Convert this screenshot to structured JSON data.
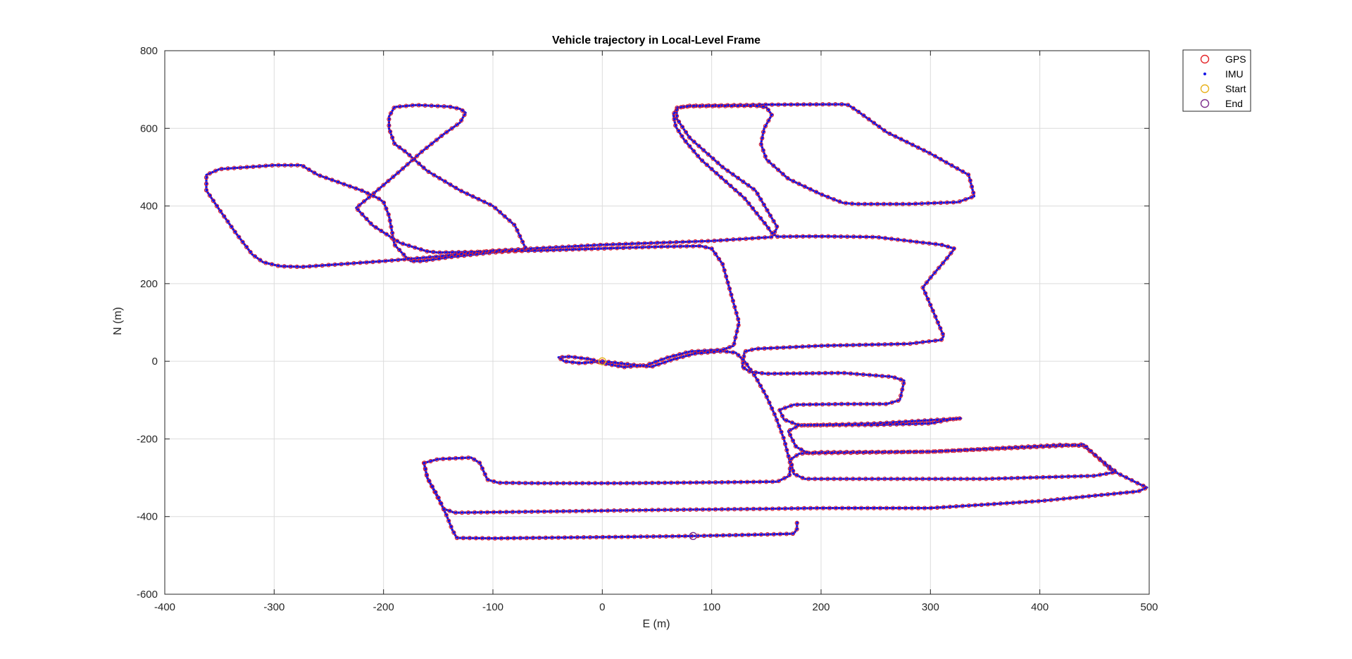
{
  "chart_data": {
    "type": "line",
    "title": "Vehicle trajectory in Local-Level Frame",
    "xlabel": "E (m)",
    "ylabel": "N (m)",
    "xlim": [
      -400,
      500
    ],
    "ylim": [
      -600,
      800
    ],
    "xticks": [
      -400,
      -300,
      -200,
      -100,
      0,
      100,
      200,
      300,
      400,
      500
    ],
    "yticks": [
      -600,
      -400,
      -200,
      0,
      200,
      400,
      600,
      800
    ],
    "xtick_labels": [
      "-400",
      "-300",
      "-200",
      "-100",
      "0",
      "100",
      "200",
      "300",
      "400",
      "500"
    ],
    "ytick_labels": [
      "-600",
      "-400",
      "-200",
      "0",
      "200",
      "400",
      "600",
      "800"
    ],
    "grid": true,
    "legend_position": "outside-top-right",
    "series": [
      {
        "name": "GPS",
        "style": "red-circle-markers",
        "color": "#e4262a"
      },
      {
        "name": "IMU",
        "style": "blue-dot-markers",
        "color": "#1515e6"
      },
      {
        "name": "Start",
        "style": "circle-marker",
        "color": "#e8b21c",
        "x": [
          0
        ],
        "y": [
          0
        ]
      },
      {
        "name": "End",
        "style": "circle-marker",
        "color": "#7e2f8e",
        "x": [
          83
        ],
        "y": [
          -450
        ]
      }
    ],
    "trajectory": [
      [
        0,
        0
      ],
      [
        25,
        -8
      ],
      [
        45,
        -14
      ],
      [
        65,
        5
      ],
      [
        85,
        20
      ],
      [
        110,
        26
      ],
      [
        122,
        22
      ],
      [
        130,
        0
      ],
      [
        140,
        -40
      ],
      [
        150,
        -90
      ],
      [
        158,
        -140
      ],
      [
        166,
        -200
      ],
      [
        172,
        -265
      ],
      [
        171,
        -295
      ],
      [
        160,
        -310
      ],
      [
        100,
        -312
      ],
      [
        20,
        -314
      ],
      [
        -60,
        -314
      ],
      [
        -95,
        -313
      ],
      [
        -105,
        -305
      ],
      [
        -112,
        -262
      ],
      [
        -120,
        -248
      ],
      [
        -150,
        -252
      ],
      [
        -163,
        -262
      ],
      [
        -160,
        -300
      ],
      [
        -145,
        -380
      ],
      [
        -135,
        -390
      ],
      [
        -50,
        -387
      ],
      [
        50,
        -383
      ],
      [
        150,
        -380
      ],
      [
        200,
        -378
      ],
      [
        300,
        -378
      ],
      [
        400,
        -360
      ],
      [
        490,
        -335
      ],
      [
        498,
        -325
      ],
      [
        490,
        -315
      ],
      [
        465,
        -280
      ],
      [
        440,
        -214
      ],
      [
        420,
        -218
      ],
      [
        300,
        -233
      ],
      [
        200,
        -234
      ],
      [
        180,
        -238
      ],
      [
        172,
        -253
      ],
      [
        175,
        -290
      ],
      [
        185,
        -303
      ],
      [
        250,
        -303
      ],
      [
        350,
        -303
      ],
      [
        450,
        -295
      ],
      [
        470,
        -285
      ],
      [
        465,
        -275
      ],
      [
        440,
        -218
      ],
      [
        420,
        -215
      ],
      [
        300,
        -233
      ],
      [
        188,
        -237
      ],
      [
        177,
        -220
      ],
      [
        170,
        -180
      ],
      [
        180,
        -165
      ],
      [
        250,
        -164
      ],
      [
        300,
        -160
      ],
      [
        318,
        -150
      ],
      [
        328,
        -147
      ],
      [
        310,
        -150
      ],
      [
        250,
        -160
      ],
      [
        180,
        -165
      ],
      [
        166,
        -150
      ],
      [
        162,
        -125
      ],
      [
        175,
        -112
      ],
      [
        220,
        -110
      ],
      [
        260,
        -110
      ],
      [
        272,
        -100
      ],
      [
        276,
        -50
      ],
      [
        265,
        -40
      ],
      [
        220,
        -30
      ],
      [
        150,
        -32
      ],
      [
        135,
        -27
      ],
      [
        128,
        -15
      ],
      [
        130,
        25
      ],
      [
        140,
        32
      ],
      [
        200,
        40
      ],
      [
        280,
        45
      ],
      [
        310,
        55
      ],
      [
        312,
        65
      ],
      [
        300,
        145
      ],
      [
        293,
        190
      ],
      [
        300,
        215
      ],
      [
        315,
        265
      ],
      [
        322,
        290
      ],
      [
        310,
        300
      ],
      [
        250,
        320
      ],
      [
        200,
        322
      ],
      [
        160,
        321
      ],
      [
        155,
        330
      ],
      [
        150,
        350
      ],
      [
        130,
        420
      ],
      [
        110,
        470
      ],
      [
        90,
        520
      ],
      [
        75,
        570
      ],
      [
        67,
        605
      ],
      [
        65,
        635
      ],
      [
        68,
        653
      ],
      [
        80,
        658
      ],
      [
        150,
        661
      ],
      [
        220,
        662
      ],
      [
        225,
        660
      ],
      [
        233,
        645
      ],
      [
        260,
        590
      ],
      [
        300,
        535
      ],
      [
        335,
        480
      ],
      [
        340,
        425
      ],
      [
        325,
        410
      ],
      [
        280,
        405
      ],
      [
        232,
        405
      ],
      [
        220,
        408
      ],
      [
        200,
        430
      ],
      [
        170,
        470
      ],
      [
        150,
        520
      ],
      [
        145,
        560
      ],
      [
        148,
        600
      ],
      [
        155,
        635
      ],
      [
        150,
        654
      ],
      [
        140,
        658
      ],
      [
        80,
        657
      ],
      [
        68,
        653
      ],
      [
        68,
        625
      ],
      [
        80,
        575
      ],
      [
        110,
        500
      ],
      [
        140,
        440
      ],
      [
        160,
        345
      ],
      [
        155,
        320
      ],
      [
        100,
        310
      ],
      [
        0,
        300
      ],
      [
        -100,
        285
      ],
      [
        -150,
        270
      ],
      [
        -200,
        258
      ],
      [
        -250,
        248
      ],
      [
        -275,
        243
      ],
      [
        -295,
        245
      ],
      [
        -310,
        255
      ],
      [
        -320,
        275
      ],
      [
        -335,
        330
      ],
      [
        -350,
        390
      ],
      [
        -362,
        440
      ],
      [
        -362,
        480
      ],
      [
        -350,
        495
      ],
      [
        -300,
        505
      ],
      [
        -275,
        505
      ],
      [
        -260,
        480
      ],
      [
        -240,
        460
      ],
      [
        -220,
        440
      ],
      [
        -205,
        420
      ],
      [
        -200,
        410
      ],
      [
        -195,
        375
      ],
      [
        -190,
        300
      ],
      [
        -180,
        270
      ],
      [
        -175,
        258
      ],
      [
        -165,
        258
      ],
      [
        -140,
        268
      ],
      [
        -100,
        280
      ],
      [
        -75,
        285
      ],
      [
        -70,
        290
      ],
      [
        -80,
        350
      ],
      [
        -100,
        400
      ],
      [
        -130,
        440
      ],
      [
        -160,
        490
      ],
      [
        -180,
        540
      ],
      [
        -190,
        560
      ],
      [
        -195,
        600
      ],
      [
        -195,
        630
      ],
      [
        -190,
        655
      ],
      [
        -170,
        660
      ],
      [
        -140,
        656
      ],
      [
        -130,
        650
      ],
      [
        -125,
        640
      ],
      [
        -130,
        615
      ],
      [
        -145,
        585
      ],
      [
        -165,
        540
      ],
      [
        -185,
        490
      ],
      [
        -210,
        430
      ],
      [
        -225,
        395
      ],
      [
        -210,
        350
      ],
      [
        -185,
        305
      ],
      [
        -160,
        283
      ],
      [
        -150,
        280
      ],
      [
        -60,
        285
      ],
      [
        50,
        295
      ],
      [
        90,
        297
      ],
      [
        100,
        290
      ],
      [
        110,
        250
      ],
      [
        120,
        150
      ],
      [
        125,
        100
      ],
      [
        120,
        40
      ],
      [
        110,
        30
      ],
      [
        80,
        25
      ],
      [
        60,
        10
      ],
      [
        40,
        -10
      ],
      [
        20,
        -15
      ],
      [
        0,
        -5
      ],
      [
        -10,
        5
      ],
      [
        -30,
        12
      ],
      [
        -40,
        10
      ],
      [
        -35,
        0
      ],
      [
        -20,
        -5
      ],
      [
        0,
        0
      ]
    ],
    "trajectory_tail": [
      [
        -163,
        -262
      ],
      [
        -160,
        -300
      ],
      [
        -150,
        -350
      ],
      [
        -142,
        -400
      ],
      [
        -137,
        -435
      ],
      [
        -133,
        -455
      ],
      [
        -100,
        -456
      ],
      [
        0,
        -453
      ],
      [
        83,
        -450
      ],
      [
        150,
        -446
      ],
      [
        175,
        -444
      ],
      [
        178,
        -432
      ],
      [
        178,
        -415
      ]
    ]
  }
}
